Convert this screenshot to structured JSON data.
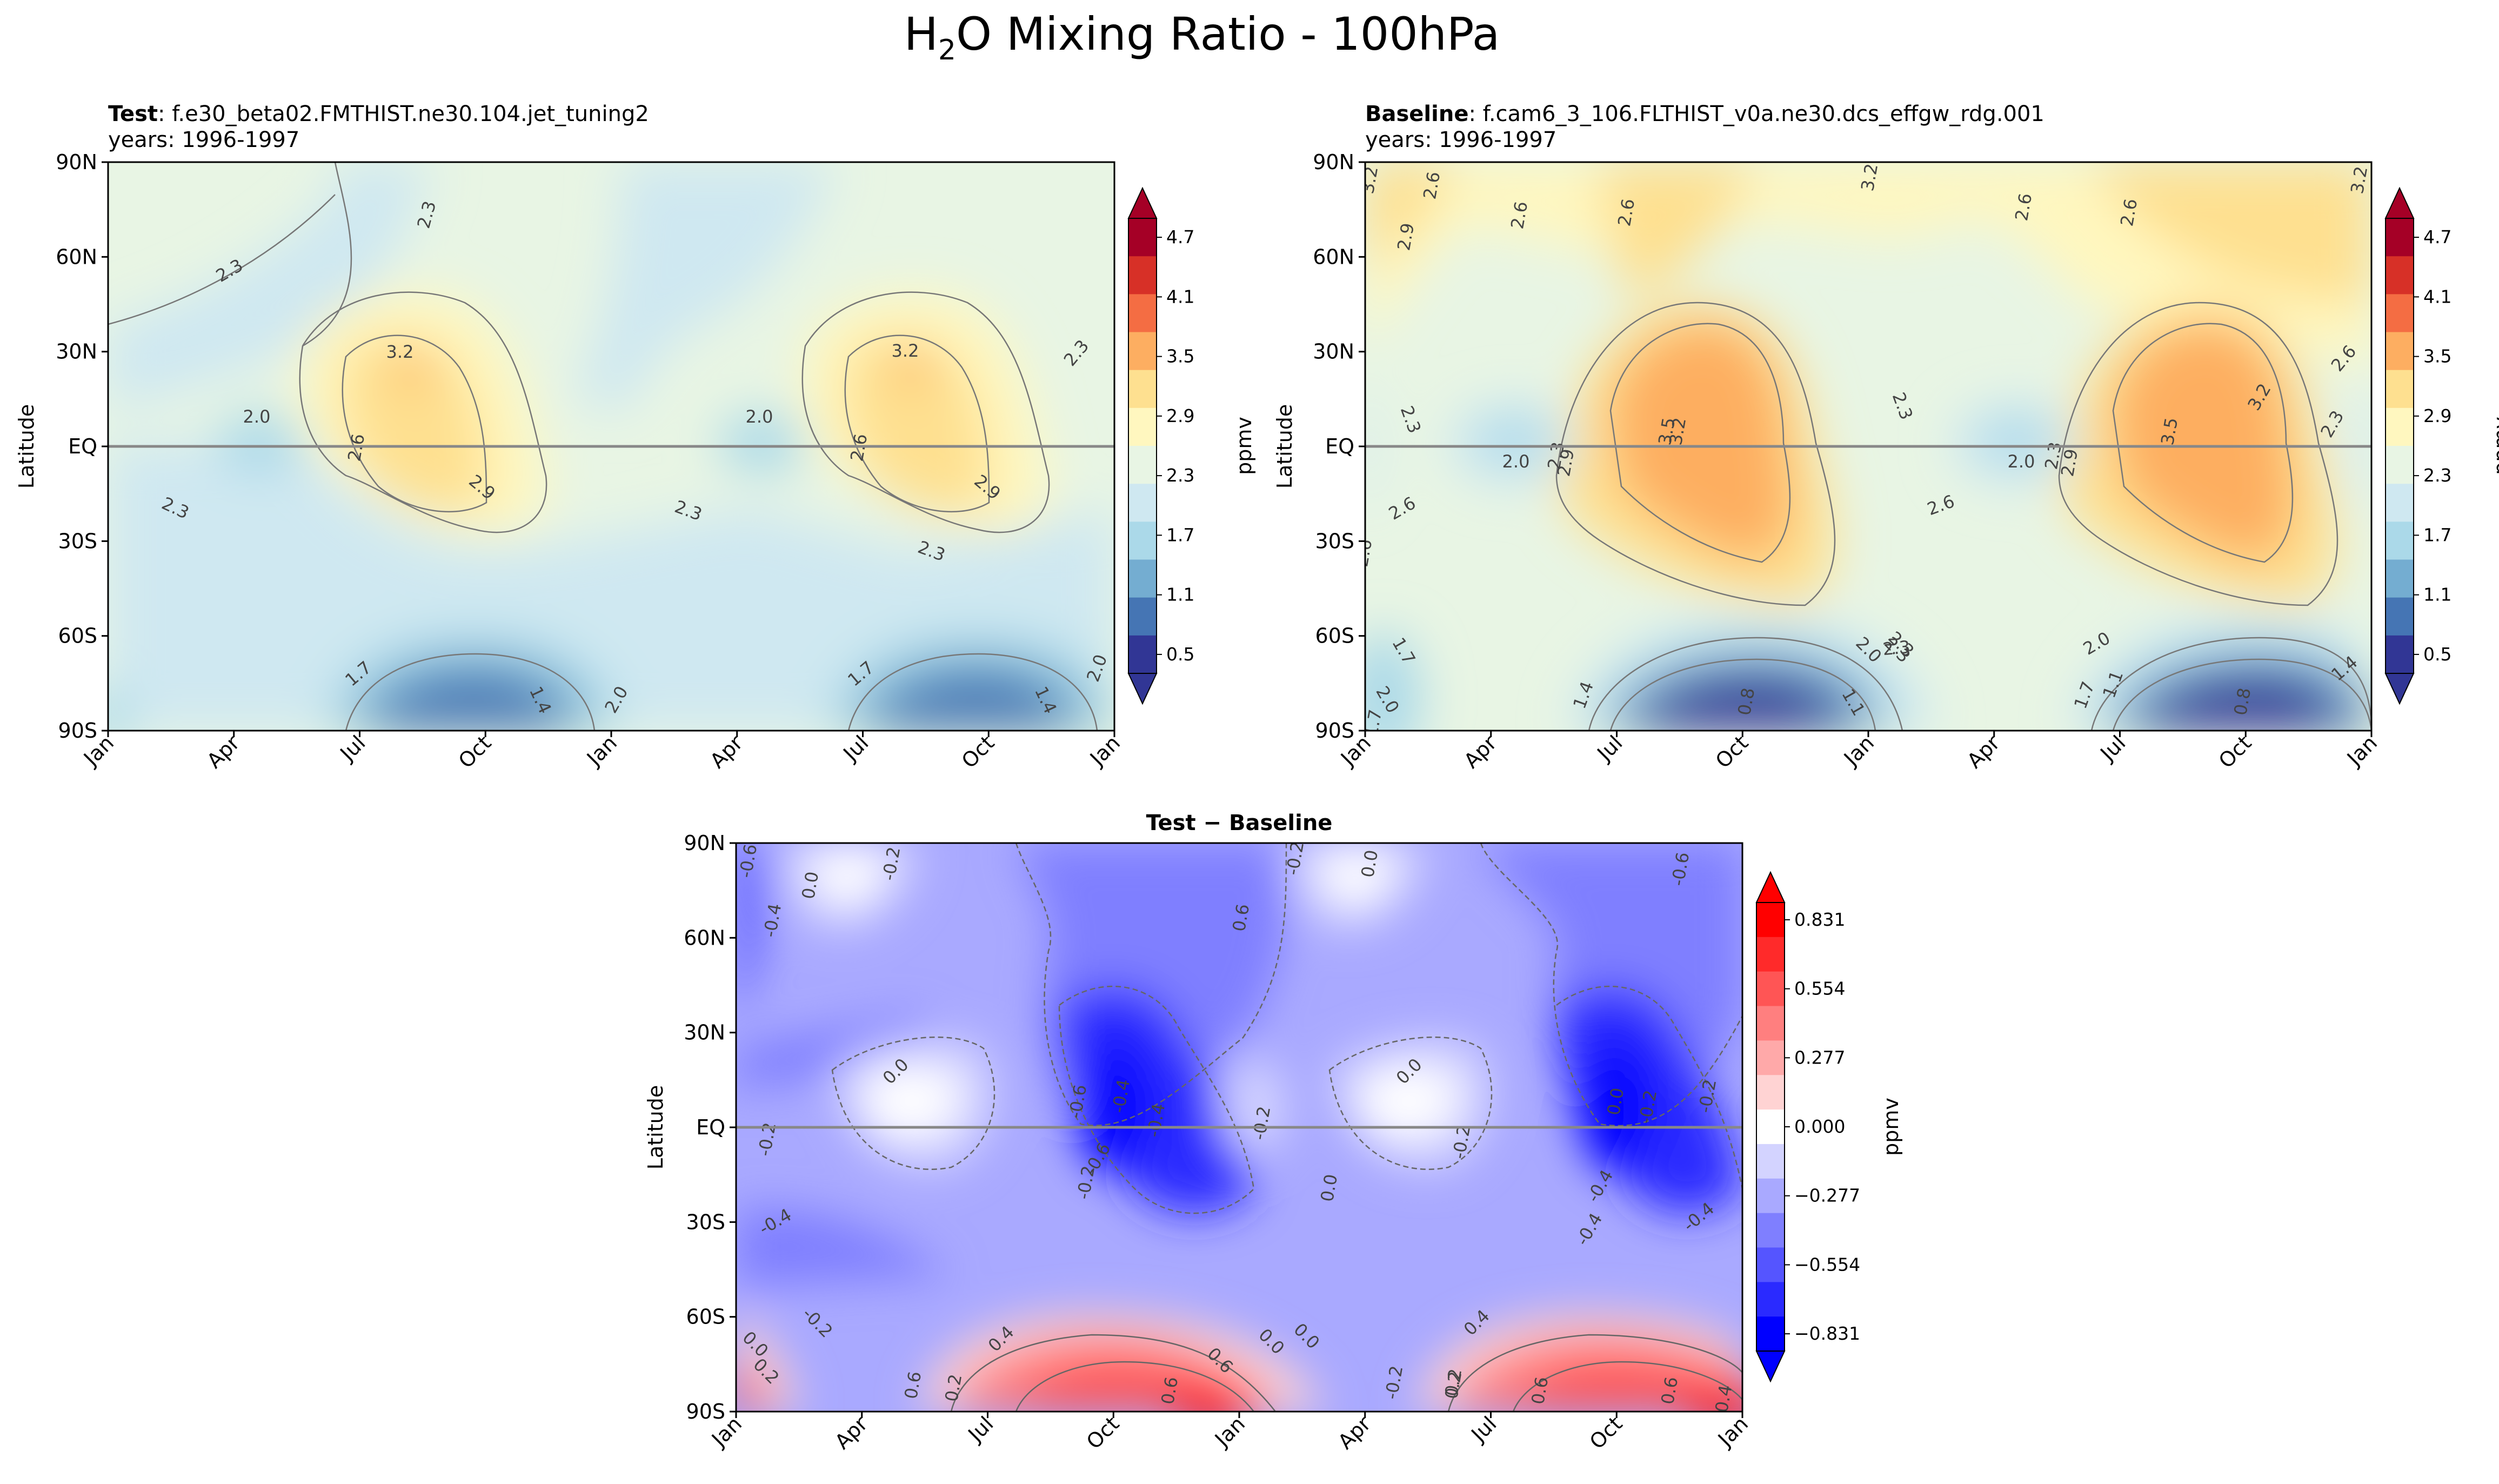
{
  "figure": {
    "suptitle_prefix": "H",
    "suptitle_sub": "2",
    "suptitle_rest": "O Mixing Ratio - 100hPa"
  },
  "colors": {
    "seq": [
      "#313695",
      "#4575b4",
      "#74add1",
      "#abd9e9",
      "#cfe8f1",
      "#e8f5e4",
      "#fff7bf",
      "#fee090",
      "#fdae61",
      "#f46d43",
      "#d73027",
      "#a50026"
    ],
    "div": [
      "#0000ff",
      "#2a2aff",
      "#5555ff",
      "#7f7fff",
      "#a9a9ff",
      "#d3d3ff",
      "#ffffff",
      "#ffd3d3",
      "#ffa9a9",
      "#ff7f7f",
      "#ff5555",
      "#ff2a2a",
      "#ff0000"
    ],
    "equator_line": "#888888"
  },
  "chart_data": [
    {
      "id": "test",
      "type": "contour",
      "title_bold": "Test",
      "title_rest": ": f.e30_beta02.FMTHIST.ne30.104.jet_tuning2",
      "subtitle": "years: 1996-1997",
      "ylabel": "Latitude",
      "xlabel": "",
      "x_ticks": [
        "Jan",
        "Apr",
        "Jul",
        "Oct",
        "Jan",
        "Apr",
        "Jul",
        "Oct",
        "Jan"
      ],
      "y_ticks": [
        "90N",
        "60N",
        "30N",
        "EQ",
        "30S",
        "60S",
        "90S"
      ],
      "colorbar_label": "ppmv",
      "colorbar_ticks": [
        "4.7",
        "4.1",
        "3.5",
        "2.9",
        "2.3",
        "1.7",
        "1.1",
        "0.5"
      ],
      "contour_labels": [
        "2.3",
        "2.3",
        "2.3",
        "2.3",
        "2.3",
        "2.3",
        "2.0",
        "2.0",
        "2.0",
        "2.0",
        "3.2",
        "3.2",
        "2.6",
        "2.6",
        "2.9",
        "2.9",
        "1.7",
        "1.7",
        "1.4",
        "1.4"
      ],
      "levels": [
        0.5,
        0.8,
        1.1,
        1.4,
        1.7,
        2.0,
        2.3,
        2.6,
        2.9,
        3.2,
        3.5,
        4.1,
        4.7
      ],
      "xlim_months": [
        0,
        24
      ],
      "ylim_deg": [
        -90,
        90
      ]
    },
    {
      "id": "baseline",
      "type": "contour",
      "title_bold": "Baseline",
      "title_rest": ": f.cam6_3_106.FLTHIST_v0a.ne30.dcs_effgw_rdg.001",
      "subtitle": "years: 1996-1997",
      "ylabel": "Latitude",
      "xlabel": "",
      "x_ticks": [
        "Jan",
        "Apr",
        "Jul",
        "Oct",
        "Jan",
        "Apr",
        "Jul",
        "Oct",
        "Jan"
      ],
      "y_ticks": [
        "90N",
        "60N",
        "30N",
        "EQ",
        "30S",
        "60S",
        "90S"
      ],
      "colorbar_label": "ppmv",
      "colorbar_ticks": [
        "4.7",
        "4.1",
        "3.5",
        "2.9",
        "2.3",
        "1.7",
        "1.1",
        "0.5"
      ],
      "contour_labels": [
        "3.2",
        "2.6",
        "2.9",
        "2.6",
        "2.6",
        "3.2",
        "2.6",
        "2.6",
        "3.2",
        "2.3",
        "2.0",
        "2.3",
        "2.9",
        "3.2",
        "3.5",
        "2.3",
        "2.6",
        "2.0",
        "2.3",
        "2.9",
        "3.5",
        "3.2",
        "2.6",
        "2.3",
        "2.6",
        "2.6",
        "2.3",
        "1.7",
        "2.0",
        "1.7",
        "1.4",
        "0.8",
        "1.1",
        "2.0",
        "2.3",
        "1.7",
        "1.1",
        "2.0",
        "0.8",
        "1.4",
        "2.3"
      ],
      "levels": [
        0.5,
        0.8,
        1.1,
        1.4,
        1.7,
        2.0,
        2.3,
        2.6,
        2.9,
        3.2,
        3.5,
        4.1,
        4.7
      ],
      "xlim_months": [
        0,
        24
      ],
      "ylim_deg": [
        -90,
        90
      ]
    },
    {
      "id": "diff",
      "type": "contour",
      "title_bold": "Test − Baseline",
      "title_rest": "",
      "subtitle": "",
      "ylabel": "Latitude",
      "xlabel": "",
      "x_ticks": [
        "Jan",
        "Apr",
        "Jul",
        "Oct",
        "Jan",
        "Apr",
        "Jul",
        "Oct",
        "Jan"
      ],
      "y_ticks": [
        "90N",
        "60N",
        "30N",
        "EQ",
        "30S",
        "60S",
        "90S"
      ],
      "colorbar_label": "ppmv",
      "colorbar_ticks": [
        "0.831",
        "0.554",
        "0.277",
        "0.000",
        "−0.277",
        "−0.554",
        "−0.831"
      ],
      "contour_labels": [
        "-0.6",
        "0.0",
        "-0.2",
        "-0.4",
        "0.6",
        "-0.2",
        "0.0",
        "-0.6",
        "0.0",
        "-0.2",
        "-0.2",
        "-0.4",
        "-0.2",
        "-0.4",
        "0.0",
        "-0.4",
        "-0.2",
        "-0.6",
        "-0.4",
        "-0.2",
        "0.0",
        "-0.4",
        "-0.2",
        "-0.4",
        "0.0",
        "-0.2",
        "-0.6",
        "0.4",
        "0.2",
        "0.6",
        "0.6",
        "0.6",
        "0.0",
        "-0.2",
        "0.2",
        "0.4",
        "0.6",
        "0.6",
        "0.0",
        "0.2",
        "0.4",
        "0.0",
        "0.2"
      ],
      "levels": [
        -0.9,
        -0.8,
        -0.7,
        -0.6,
        -0.5,
        -0.4,
        -0.3,
        -0.2,
        -0.1,
        0.0,
        0.1,
        0.2,
        0.3,
        0.4,
        0.5,
        0.6,
        0.7,
        0.8,
        0.9
      ],
      "xlim_months": [
        0,
        24
      ],
      "ylim_deg": [
        -90,
        90
      ]
    }
  ]
}
